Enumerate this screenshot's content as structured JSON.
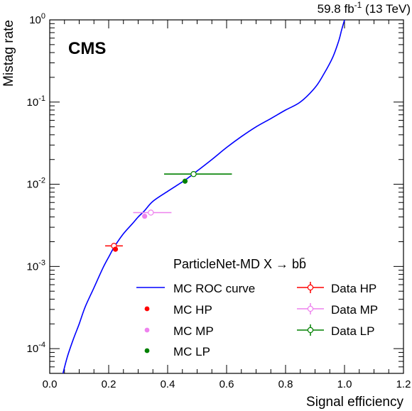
{
  "chart_data": {
    "type": "line",
    "lumi_label": "59.8 fb",
    "lumi_sup": "-1",
    "energy_label": " (13 TeV)",
    "experiment": "CMS",
    "xlabel": "Signal efficiency",
    "ylabel": "Mistag rate",
    "xlim": [
      0.0,
      1.2
    ],
    "ylim": [
      5e-05,
      1.0
    ],
    "yscale": "log",
    "x_ticks": [
      "0.0",
      "0.2",
      "0.4",
      "0.6",
      "0.8",
      "1.0",
      "1.2"
    ],
    "y_ticks": [
      {
        "base": "10",
        "exp": "0"
      },
      {
        "base": "10",
        "exp": "-1"
      },
      {
        "base": "10",
        "exp": "-2"
      },
      {
        "base": "10",
        "exp": "-3"
      },
      {
        "base": "10",
        "exp": "-4"
      }
    ],
    "legend_title": "ParticleNet-MD X → bb̄",
    "legend_position": "bottom-right",
    "roc_curve": {
      "name": "MC ROC curve",
      "color": "#0000ff",
      "x": [
        0.045,
        0.06,
        0.08,
        0.1,
        0.12,
        0.15,
        0.18,
        0.2,
        0.22,
        0.25,
        0.28,
        0.3,
        0.32,
        0.35,
        0.4,
        0.46,
        0.5,
        0.55,
        0.6,
        0.65,
        0.7,
        0.75,
        0.8,
        0.85,
        0.9,
        0.93,
        0.96,
        0.98,
        0.99,
        1.0
      ],
      "y": [
        5e-05,
        8e-05,
        0.00013,
        0.0002,
        0.00032,
        0.00055,
        0.00095,
        0.0013,
        0.00175,
        0.0025,
        0.0033,
        0.004,
        0.0047,
        0.0062,
        0.0082,
        0.0113,
        0.0145,
        0.02,
        0.028,
        0.038,
        0.05,
        0.063,
        0.08,
        0.1,
        0.15,
        0.22,
        0.35,
        0.55,
        0.75,
        1.0
      ]
    },
    "mc_points": [
      {
        "name": "MC HP",
        "color": "#ff0000",
        "x": 0.223,
        "y": 0.00162
      },
      {
        "name": "MC MP",
        "color": "#ee82ee",
        "x": 0.322,
        "y": 0.00408
      },
      {
        "name": "MC LP",
        "color": "#008000",
        "x": 0.459,
        "y": 0.0109
      }
    ],
    "data_points": [
      {
        "name": "Data HP",
        "color": "#ff0000",
        "x": 0.218,
        "y": 0.00178,
        "xerr_low": 0.03,
        "xerr_high": 0.03
      },
      {
        "name": "Data MP",
        "color": "#ee82ee",
        "x": 0.343,
        "y": 0.00452,
        "xerr_low": 0.06,
        "xerr_high": 0.07
      },
      {
        "name": "Data LP",
        "color": "#008000",
        "x": 0.488,
        "y": 0.0133,
        "xerr_low": 0.1,
        "xerr_high": 0.13
      }
    ]
  }
}
